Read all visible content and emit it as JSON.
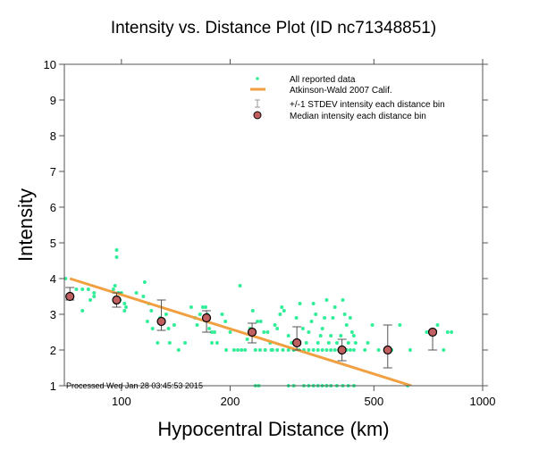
{
  "chart_data": {
    "type": "scatter",
    "title": "Intensity vs. Distance Plot (ID nc71348851)",
    "xlabel": "Hypocentral Distance (km)",
    "ylabel": "Intensity",
    "xscale": "log",
    "xlim": [
      69.5,
      1000
    ],
    "ylim": [
      1,
      10
    ],
    "xticks": [
      100,
      200,
      500,
      1000
    ],
    "xtick_labels": [
      "100",
      "200",
      "500",
      "1000"
    ],
    "yticks": [
      1,
      2,
      3,
      4,
      5,
      6,
      7,
      8,
      9,
      10
    ],
    "ytick_labels": [
      "1",
      "2",
      "3",
      "4",
      "5",
      "6",
      "7",
      "8",
      "9",
      "10"
    ],
    "grid": false,
    "legend_position": "top-right",
    "annotation": "Processed Wed Jan 28 03:45:53 2015",
    "colors": {
      "reported": "#33ee99",
      "model": "#f0a040",
      "median_fill": "#c06060",
      "median_edge": "#000000",
      "stdev": "#555555"
    },
    "series": [
      {
        "name": "All reported data",
        "kind": "points",
        "points": [
          [
            70,
            4.0
          ],
          [
            75,
            3.7
          ],
          [
            78,
            3.7
          ],
          [
            81,
            3.7
          ],
          [
            84,
            3.6
          ],
          [
            84,
            3.5
          ],
          [
            82,
            3.4
          ],
          [
            78,
            3.1
          ],
          [
            96,
            3.8
          ],
          [
            97,
            4.8
          ],
          [
            97,
            4.6
          ],
          [
            95,
            3.7
          ],
          [
            98,
            3.6
          ],
          [
            100,
            3.6
          ],
          [
            99,
            3.4
          ],
          [
            102,
            3.3
          ],
          [
            103,
            3.2
          ],
          [
            102,
            3.1
          ],
          [
            110,
            3.6
          ],
          [
            116,
            3.9
          ],
          [
            115,
            3.5
          ],
          [
            119,
            3.3
          ],
          [
            118,
            2.8
          ],
          [
            121,
            3.1
          ],
          [
            122,
            2.6
          ],
          [
            128,
            2.9
          ],
          [
            133,
            3.0
          ],
          [
            135,
            2.6
          ],
          [
            126,
            2.2
          ],
          [
            136,
            2.2
          ],
          [
            140,
            2.7
          ],
          [
            144,
            2.0
          ],
          [
            150,
            2.2
          ],
          [
            156,
            3.2
          ],
          [
            160,
            2.9
          ],
          [
            162,
            2.7
          ],
          [
            165,
            3.0
          ],
          [
            168,
            3.2
          ],
          [
            171,
            3.2
          ],
          [
            173,
            3.0
          ],
          [
            175,
            2.6
          ],
          [
            178,
            2.5
          ],
          [
            181,
            2.5
          ],
          [
            184,
            2.2
          ],
          [
            178,
            2.2
          ],
          [
            190,
            3.0
          ],
          [
            194,
            2.8
          ],
          [
            200,
            2.5
          ],
          [
            195,
            2.0
          ],
          [
            205,
            2.0
          ],
          [
            210,
            2.0
          ],
          [
            215,
            2.0
          ],
          [
            220,
            2.0
          ],
          [
            213,
            3.8
          ],
          [
            223,
            2.3
          ],
          [
            227,
            2.6
          ],
          [
            231,
            3.1
          ],
          [
            238,
            2.8
          ],
          [
            243,
            2.8
          ],
          [
            248,
            2.5
          ],
          [
            254,
            2.5
          ],
          [
            258,
            2.2
          ],
          [
            262,
            2.0
          ],
          [
            266,
            2.7
          ],
          [
            270,
            2.6
          ],
          [
            275,
            3.0
          ],
          [
            278,
            3.2
          ],
          [
            282,
            3.1
          ],
          [
            290,
            2.4
          ],
          [
            296,
            2.2
          ],
          [
            300,
            2.0
          ],
          [
            305,
            2.9
          ],
          [
            312,
            3.3
          ],
          [
            318,
            2.6
          ],
          [
            235,
            2.0
          ],
          [
            242,
            2.0
          ],
          [
            250,
            2.0
          ],
          [
            260,
            2.0
          ],
          [
            270,
            2.0
          ],
          [
            280,
            2.0
          ],
          [
            290,
            2.0
          ],
          [
            300,
            2.0
          ],
          [
            310,
            2.0
          ],
          [
            320,
            2.0
          ],
          [
            325,
            2.2
          ],
          [
            330,
            2.5
          ],
          [
            336,
            2.8
          ],
          [
            340,
            3.3
          ],
          [
            345,
            3.0
          ],
          [
            350,
            2.2
          ],
          [
            356,
            2.4
          ],
          [
            360,
            2.6
          ],
          [
            365,
            2.9
          ],
          [
            370,
            3.4
          ],
          [
            330,
            2.0
          ],
          [
            340,
            2.0
          ],
          [
            350,
            2.0
          ],
          [
            360,
            2.0
          ],
          [
            370,
            2.0
          ],
          [
            380,
            2.0
          ],
          [
            390,
            2.0
          ],
          [
            400,
            2.0
          ],
          [
            410,
            2.0
          ],
          [
            420,
            2.0
          ],
          [
            375,
            2.2
          ],
          [
            380,
            2.4
          ],
          [
            385,
            2.9
          ],
          [
            390,
            3.2
          ],
          [
            395,
            2.2
          ],
          [
            405,
            2.4
          ],
          [
            410,
            3.4
          ],
          [
            415,
            3.0
          ],
          [
            420,
            2.7
          ],
          [
            425,
            2.2
          ],
          [
            430,
            2.9
          ],
          [
            435,
            2.5
          ],
          [
            440,
            2.4
          ],
          [
            445,
            2.2
          ],
          [
            440,
            2.0
          ],
          [
            430,
            2.0
          ],
          [
            472,
            2.0
          ],
          [
            481,
            2.2
          ],
          [
            495,
            2.7
          ],
          [
            515,
            2.0
          ],
          [
            560,
            2.0
          ],
          [
            590,
            2.7
          ],
          [
            630,
            2.0
          ],
          [
            700,
            2.5
          ],
          [
            750,
            2.7
          ],
          [
            800,
            2.5
          ],
          [
            820,
            2.5
          ],
          [
            780,
            2.0
          ],
          [
            235,
            1.0
          ],
          [
            240,
            1.0
          ],
          [
            290,
            1.0
          ],
          [
            300,
            1.0
          ],
          [
            320,
            1.0
          ],
          [
            330,
            1.0
          ],
          [
            340,
            1.0
          ],
          [
            350,
            1.0
          ],
          [
            360,
            1.0
          ],
          [
            370,
            1.0
          ],
          [
            380,
            1.0
          ],
          [
            395,
            1.0
          ],
          [
            410,
            1.0
          ],
          [
            425,
            1.0
          ],
          [
            440,
            1.0
          ],
          [
            620,
            1.0
          ]
        ]
      },
      {
        "name": "Atkinson-Wald 2007 Calif.",
        "kind": "line",
        "points": [
          [
            72,
            4.0
          ],
          [
            635,
            1.0
          ]
        ]
      },
      {
        "name": "+/-1 STDEV intensity each distance bin",
        "kind": "errorbar",
        "ranges": [
          [
            72,
            3.4,
            3.75
          ],
          [
            97,
            3.2,
            3.6
          ],
          [
            129,
            2.55,
            3.4
          ],
          [
            172,
            2.5,
            3.1
          ],
          [
            230,
            2.2,
            2.75
          ],
          [
            306,
            2.0,
            2.65
          ],
          [
            408,
            1.7,
            2.3
          ],
          [
            546,
            1.5,
            2.7
          ],
          [
            727,
            2.0,
            2.55
          ]
        ]
      },
      {
        "name": "Median intensity each distance bin",
        "kind": "markers",
        "points": [
          [
            72,
            3.5
          ],
          [
            97,
            3.4
          ],
          [
            129,
            2.8
          ],
          [
            172,
            2.9
          ],
          [
            230,
            2.5
          ],
          [
            306,
            2.2
          ],
          [
            408,
            2.0
          ],
          [
            546,
            2.0
          ],
          [
            727,
            2.5
          ]
        ]
      }
    ]
  }
}
